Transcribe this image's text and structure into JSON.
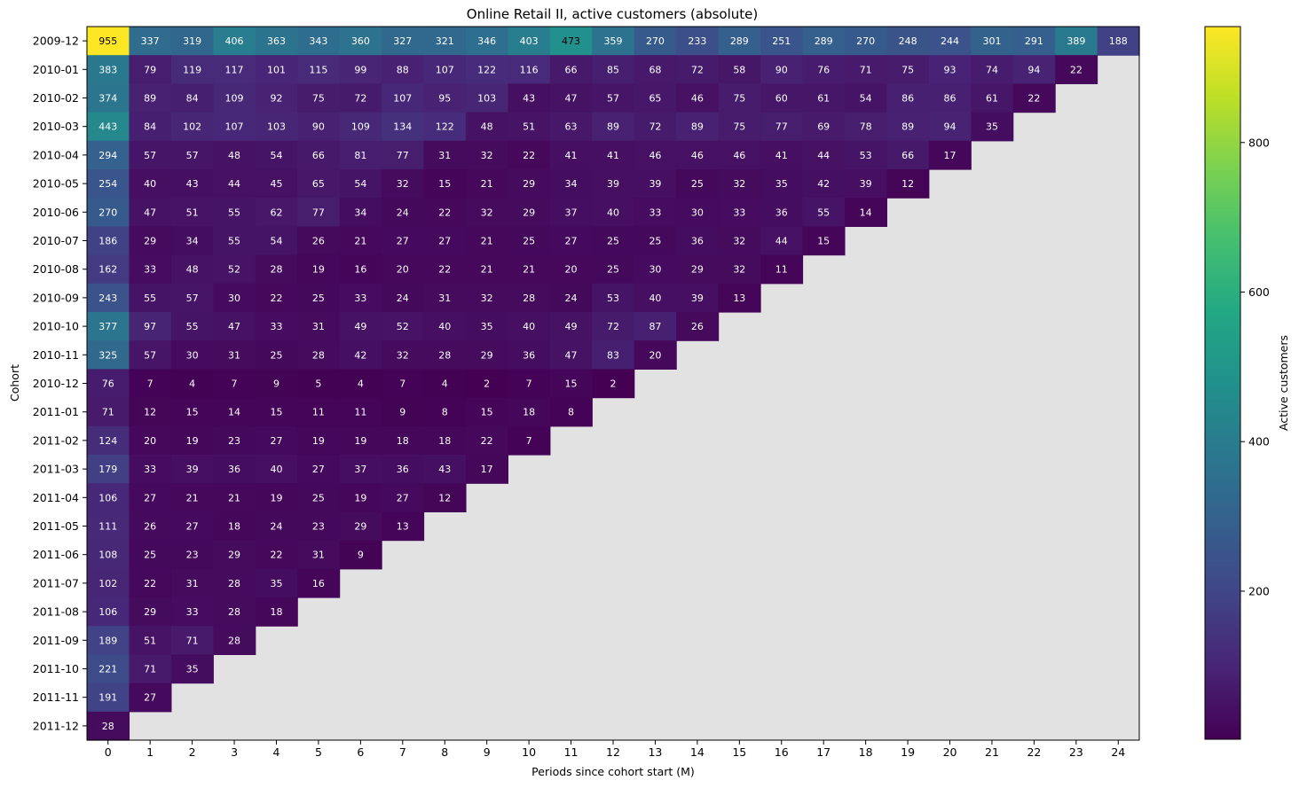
{
  "chart_data": {
    "type": "heatmap",
    "title": "Online Retail II, active customers (absolute)",
    "xlabel": "Periods since cohort start (M)",
    "ylabel": "Cohort",
    "colorbar_label": "Active customers",
    "colorbar_ticks": [
      200,
      400,
      600,
      800
    ],
    "value_range": [
      2,
      955
    ],
    "colormap": "viridis",
    "missing_color": "#e2e2e2",
    "periods": [
      "0",
      "1",
      "2",
      "3",
      "4",
      "5",
      "6",
      "7",
      "8",
      "9",
      "10",
      "11",
      "12",
      "13",
      "14",
      "15",
      "16",
      "17",
      "18",
      "19",
      "20",
      "21",
      "22",
      "23",
      "24"
    ],
    "cohorts": [
      "2009-12",
      "2010-01",
      "2010-02",
      "2010-03",
      "2010-04",
      "2010-05",
      "2010-06",
      "2010-07",
      "2010-08",
      "2010-09",
      "2010-10",
      "2010-11",
      "2010-12",
      "2011-01",
      "2011-02",
      "2011-03",
      "2011-04",
      "2011-05",
      "2011-06",
      "2011-07",
      "2011-08",
      "2011-09",
      "2011-10",
      "2011-11",
      "2011-12"
    ],
    "values": [
      [
        955,
        337,
        319,
        406,
        363,
        343,
        360,
        327,
        321,
        346,
        403,
        473,
        359,
        270,
        233,
        289,
        251,
        289,
        270,
        248,
        244,
        301,
        291,
        389,
        188
      ],
      [
        383,
        79,
        119,
        117,
        101,
        115,
        99,
        88,
        107,
        122,
        116,
        66,
        85,
        68,
        72,
        58,
        90,
        76,
        71,
        75,
        93,
        74,
        94,
        22
      ],
      [
        374,
        89,
        84,
        109,
        92,
        75,
        72,
        107,
        95,
        103,
        43,
        47,
        57,
        65,
        46,
        75,
        60,
        61,
        54,
        86,
        86,
        61,
        22
      ],
      [
        443,
        84,
        102,
        107,
        103,
        90,
        109,
        134,
        122,
        48,
        51,
        63,
        89,
        72,
        89,
        75,
        77,
        69,
        78,
        89,
        94,
        35
      ],
      [
        294,
        57,
        57,
        48,
        54,
        66,
        81,
        77,
        31,
        32,
        22,
        41,
        41,
        46,
        46,
        46,
        41,
        44,
        53,
        66,
        17
      ],
      [
        254,
        40,
        43,
        44,
        45,
        65,
        54,
        32,
        15,
        21,
        29,
        34,
        39,
        39,
        25,
        32,
        35,
        42,
        39,
        12
      ],
      [
        270,
        47,
        51,
        55,
        62,
        77,
        34,
        24,
        22,
        32,
        29,
        37,
        40,
        33,
        30,
        33,
        36,
        55,
        14
      ],
      [
        186,
        29,
        34,
        55,
        54,
        26,
        21,
        27,
        27,
        21,
        25,
        27,
        25,
        25,
        36,
        32,
        44,
        15
      ],
      [
        162,
        33,
        48,
        52,
        28,
        19,
        16,
        20,
        22,
        21,
        21,
        20,
        25,
        30,
        29,
        32,
        11
      ],
      [
        243,
        55,
        57,
        30,
        22,
        25,
        33,
        24,
        31,
        32,
        28,
        24,
        53,
        40,
        39,
        13
      ],
      [
        377,
        97,
        55,
        47,
        33,
        31,
        49,
        52,
        40,
        35,
        40,
        49,
        72,
        87,
        26
      ],
      [
        325,
        57,
        30,
        31,
        25,
        28,
        42,
        32,
        28,
        29,
        36,
        47,
        83,
        20
      ],
      [
        76,
        7,
        4,
        7,
        9,
        5,
        4,
        7,
        4,
        2,
        7,
        15,
        2
      ],
      [
        71,
        12,
        15,
        14,
        15,
        11,
        11,
        9,
        8,
        15,
        18,
        8
      ],
      [
        124,
        20,
        19,
        23,
        27,
        19,
        19,
        18,
        18,
        22,
        7
      ],
      [
        179,
        33,
        39,
        36,
        40,
        27,
        37,
        36,
        43,
        17
      ],
      [
        106,
        27,
        21,
        21,
        19,
        25,
        19,
        27,
        12
      ],
      [
        111,
        26,
        27,
        18,
        24,
        23,
        29,
        13
      ],
      [
        108,
        25,
        23,
        29,
        22,
        31,
        9
      ],
      [
        102,
        22,
        31,
        28,
        35,
        16
      ],
      [
        106,
        29,
        33,
        28,
        18
      ],
      [
        189,
        51,
        71,
        28
      ],
      [
        221,
        71,
        35
      ],
      [
        191,
        27
      ],
      [
        28
      ]
    ]
  }
}
